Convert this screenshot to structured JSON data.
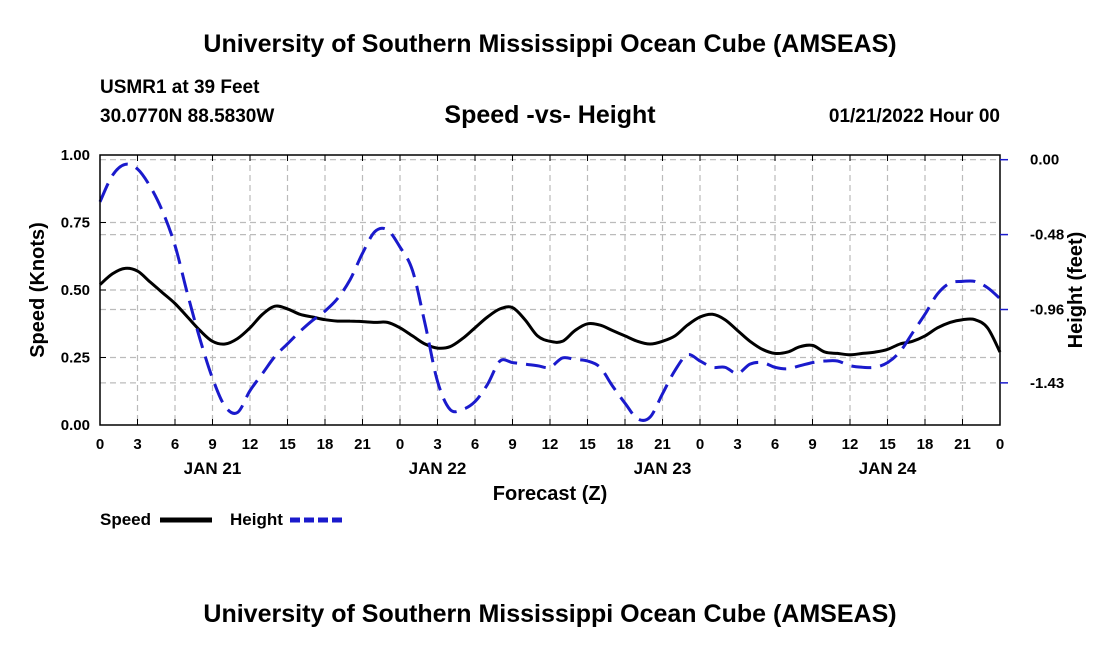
{
  "header": {
    "title": "University of Southern Mississippi Ocean Cube (AMSEAS)",
    "station": "USMR1 at 39 Feet",
    "location": "30.0770N  88.5830W",
    "datetime": "01/21/2022 Hour 00"
  },
  "footer": {
    "title": "University of Southern Mississippi Ocean Cube (AMSEAS)"
  },
  "colors": {
    "speed": "#000000",
    "height": "#1a1acc",
    "grid": "#bbbbbb"
  },
  "chart_data": {
    "type": "line",
    "title": "Speed -vs- Height",
    "xlabel": "Forecast (Z)",
    "ylabel": "Speed (Knots)",
    "y2label": "Height (feet)",
    "x_range": [
      0,
      72
    ],
    "x_ticks": [
      0,
      3,
      6,
      9,
      12,
      15,
      18,
      21,
      24,
      27,
      30,
      33,
      36,
      39,
      42,
      45,
      48,
      51,
      54,
      57,
      60,
      63,
      66,
      69,
      72
    ],
    "x_tick_labels": [
      "0",
      "3",
      "6",
      "9",
      "12",
      "15",
      "18",
      "21",
      "0",
      "3",
      "6",
      "9",
      "12",
      "15",
      "18",
      "21",
      "0",
      "3",
      "6",
      "9",
      "12",
      "15",
      "18",
      "21",
      "0"
    ],
    "day_labels": [
      {
        "x": 9,
        "label": "JAN 21"
      },
      {
        "x": 27,
        "label": "JAN 22"
      },
      {
        "x": 45,
        "label": "JAN 23"
      },
      {
        "x": 63,
        "label": "JAN 24"
      }
    ],
    "ylim": [
      0,
      1
    ],
    "y_ticks": [
      0,
      0.25,
      0.5,
      0.75,
      1.0
    ],
    "y_tick_labels": [
      "0.00",
      "0.25",
      "0.50",
      "0.75",
      "1.00"
    ],
    "y2lim": [
      -1.7,
      0.03
    ],
    "y2_ticks": [
      0.0,
      -0.48,
      -0.96,
      -1.43
    ],
    "y2_tick_labels": [
      "0.00",
      "-0.48",
      "-0.96",
      "-1.43"
    ],
    "series": [
      {
        "name": "Speed",
        "axis": "left",
        "style": "solid",
        "x": [
          0,
          1,
          2,
          3,
          4,
          5,
          6,
          7,
          8,
          9,
          10,
          11,
          12,
          13,
          14,
          15,
          16,
          17,
          18,
          19,
          20,
          21,
          22,
          23,
          24,
          25,
          26,
          27,
          28,
          29,
          30,
          31,
          32,
          33,
          34,
          35,
          36,
          37,
          38,
          39,
          40,
          41,
          42,
          43,
          44,
          45,
          46,
          47,
          48,
          49,
          50,
          51,
          52,
          53,
          54,
          55,
          56,
          57,
          58,
          59,
          60,
          61,
          62,
          63,
          64,
          65,
          66,
          67,
          68,
          69,
          70,
          71,
          72
        ],
        "values": [
          0.52,
          0.56,
          0.58,
          0.57,
          0.53,
          0.49,
          0.45,
          0.4,
          0.35,
          0.31,
          0.3,
          0.32,
          0.36,
          0.41,
          0.44,
          0.43,
          0.41,
          0.4,
          0.39,
          0.385,
          0.385,
          0.383,
          0.38,
          0.38,
          0.36,
          0.33,
          0.3,
          0.285,
          0.29,
          0.32,
          0.36,
          0.4,
          0.43,
          0.435,
          0.39,
          0.33,
          0.31,
          0.31,
          0.35,
          0.375,
          0.37,
          0.35,
          0.33,
          0.31,
          0.3,
          0.31,
          0.33,
          0.37,
          0.4,
          0.41,
          0.39,
          0.35,
          0.31,
          0.28,
          0.265,
          0.27,
          0.29,
          0.295,
          0.27,
          0.265,
          0.26,
          0.265,
          0.27,
          0.28,
          0.3,
          0.31,
          0.33,
          0.36,
          0.38,
          0.39,
          0.39,
          0.36,
          0.27
        ]
      },
      {
        "name": "Height",
        "axis": "right",
        "style": "dashed",
        "x": [
          0,
          1,
          2,
          3,
          4,
          5,
          6,
          7,
          8,
          9,
          10,
          11,
          12,
          13,
          14,
          15,
          16,
          17,
          18,
          19,
          20,
          21,
          22,
          23,
          24,
          25,
          26,
          27,
          28,
          29,
          30,
          31,
          32,
          33,
          34,
          35,
          36,
          37,
          38,
          39,
          40,
          41,
          42,
          43,
          44,
          45,
          46,
          47,
          48,
          49,
          50,
          51,
          52,
          53,
          54,
          55,
          56,
          57,
          58,
          59,
          60,
          61,
          62,
          63,
          64,
          65,
          66,
          67,
          68,
          69,
          70,
          71,
          72
        ],
        "values": [
          -0.27,
          -0.1,
          -0.03,
          -0.06,
          -0.17,
          -0.33,
          -0.55,
          -0.86,
          -1.15,
          -1.4,
          -1.58,
          -1.62,
          -1.48,
          -1.37,
          -1.26,
          -1.18,
          -1.1,
          -1.03,
          -0.97,
          -0.89,
          -0.77,
          -0.6,
          -0.46,
          -0.45,
          -0.56,
          -0.71,
          -1.05,
          -1.42,
          -1.6,
          -1.6,
          -1.55,
          -1.44,
          -1.29,
          -1.3,
          -1.31,
          -1.32,
          -1.33,
          -1.27,
          -1.28,
          -1.29,
          -1.33,
          -1.45,
          -1.56,
          -1.66,
          -1.65,
          -1.5,
          -1.35,
          -1.25,
          -1.29,
          -1.33,
          -1.33,
          -1.37,
          -1.31,
          -1.3,
          -1.33,
          -1.34,
          -1.32,
          -1.3,
          -1.29,
          -1.29,
          -1.32,
          -1.33,
          -1.33,
          -1.3,
          -1.23,
          -1.11,
          -0.99,
          -0.86,
          -0.79,
          -0.78,
          -0.78,
          -0.82,
          -0.89
        ]
      }
    ],
    "legend": [
      {
        "label": "Speed",
        "style": "solid"
      },
      {
        "label": "Height",
        "style": "dashed"
      }
    ]
  }
}
